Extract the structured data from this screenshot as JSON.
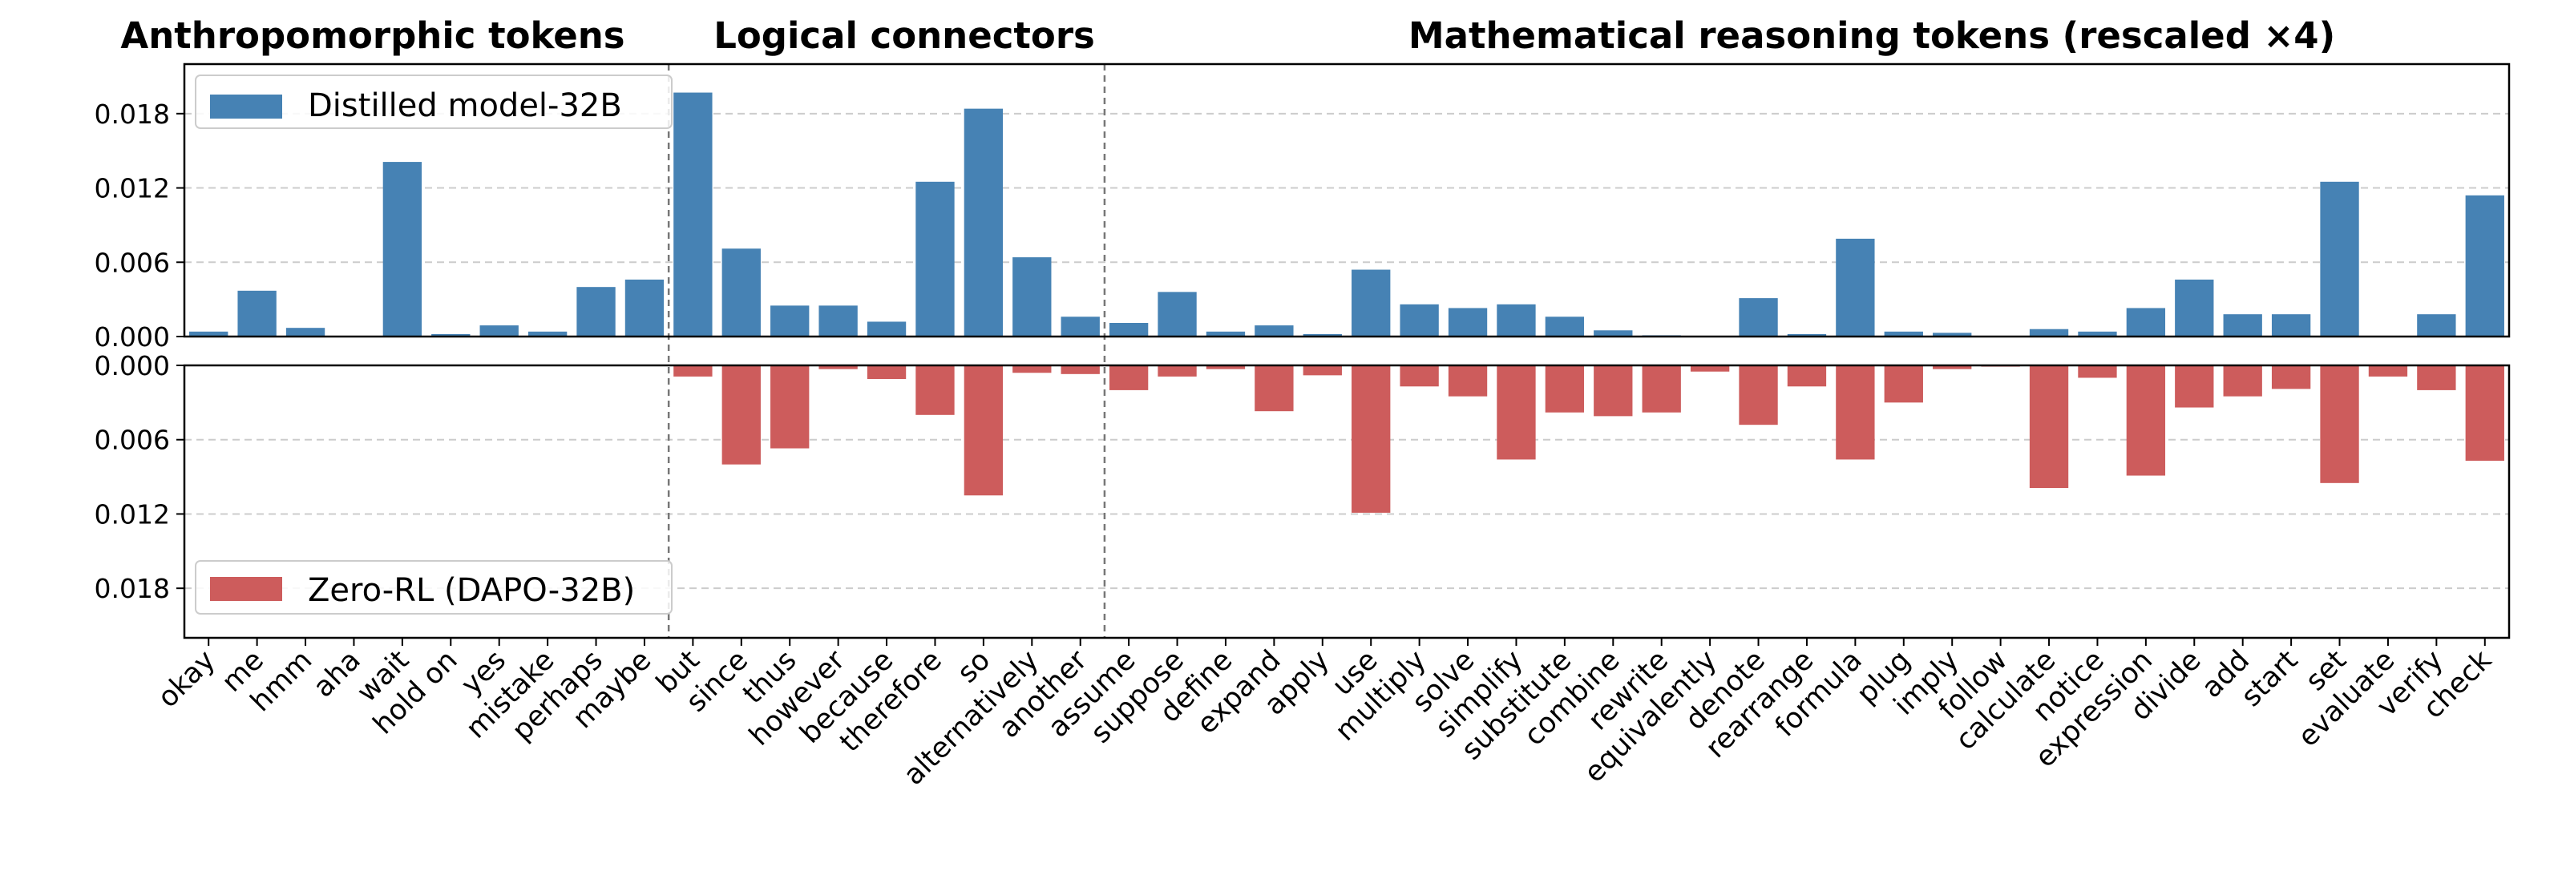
{
  "colors": {
    "distilled": "#4682B4",
    "zero_rl": "#CD5C5C",
    "grid": "#cccccc",
    "divider": "#777777"
  },
  "chart_data": {
    "type": "bar",
    "section_titles": [
      "Anthropomorphic tokens",
      "Logical connectors",
      "Mathematical reasoning tokens (rescaled ×4)"
    ],
    "categories": [
      "okay",
      "me",
      "hmm",
      "aha",
      "wait",
      "hold on",
      "yes",
      "mistake",
      "perhaps",
      "maybe",
      "but",
      "since",
      "thus",
      "however",
      "because",
      "therefore",
      "so",
      "alternatively",
      "another",
      "assume",
      "suppose",
      "define",
      "expand",
      "apply",
      "use",
      "multiply",
      "solve",
      "simplify",
      "substitute",
      "combine",
      "rewrite",
      "equivalently",
      "denote",
      "rearrange",
      "formula",
      "plug",
      "imply",
      "follow",
      "calculate",
      "notice",
      "expression",
      "divide",
      "add",
      "start",
      "set",
      "evaluate",
      "verify",
      "check"
    ],
    "series": [
      {
        "name": "Distilled model-32B",
        "panel": "top",
        "values": [
          0.0004,
          0.0037,
          0.0007,
          0.0,
          0.0141,
          0.0002,
          0.0009,
          0.0004,
          0.004,
          0.0046,
          0.0197,
          0.0071,
          0.0025,
          0.0025,
          0.0012,
          0.0125,
          0.0184,
          0.0064,
          0.0016,
          0.0011,
          0.0036,
          0.0004,
          0.0009,
          0.0002,
          0.0054,
          0.0026,
          0.0023,
          0.0026,
          0.0016,
          0.0005,
          0.0001,
          0.0,
          0.0031,
          0.0002,
          0.0079,
          0.0004,
          0.0003,
          0.0,
          0.0006,
          0.0004,
          0.0023,
          0.0046,
          0.0018,
          0.0018,
          0.0125,
          0.0,
          0.0018,
          0.0114
        ]
      },
      {
        "name": "Zero-RL (DAPO-32B)",
        "panel": "bottom",
        "values": [
          0,
          0,
          0,
          0,
          0,
          0,
          0,
          0,
          0,
          0,
          0.0009,
          0.008,
          0.0067,
          0.0003,
          0.0011,
          0.004,
          0.0105,
          0.0006,
          0.0007,
          0.002,
          0.0009,
          0.0003,
          0.0037,
          0.0008,
          0.0119,
          0.0017,
          0.0025,
          0.0076,
          0.0038,
          0.0041,
          0.0038,
          0.0005,
          0.0048,
          0.0017,
          0.0076,
          0.003,
          0.0003,
          0.0001,
          0.0099,
          0.001,
          0.0089,
          0.0034,
          0.0025,
          0.0019,
          0.0095,
          0.0009,
          0.002,
          0.0077
        ]
      }
    ],
    "y_ticks": [
      "0.000",
      "0.006",
      "0.012",
      "0.018"
    ],
    "ylim": [
      0,
      0.022
    ],
    "grid": true,
    "legend_placement": "upper-left of each panel"
  }
}
